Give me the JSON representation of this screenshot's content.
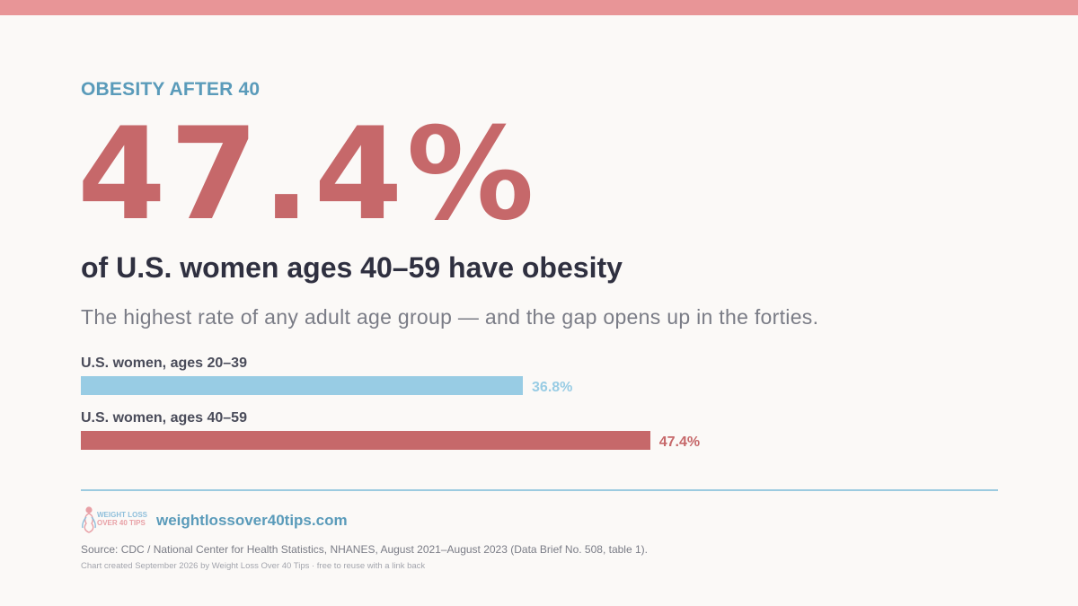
{
  "colors": {
    "accent_red": "#c6686a",
    "accent_blue": "#98cce4",
    "kicker_blue": "#5a9bba",
    "top_bar": "#e89597",
    "divider": "#9ccbe0"
  },
  "kicker": "OBESITY AFTER 40",
  "big_stat": "47.4%",
  "headline": "of U.S. women ages 40–59 have obesity",
  "subhead": "The highest rate of any adult age group — and the gap opens up in the forties.",
  "chart_data": {
    "type": "bar",
    "orientation": "horizontal",
    "unit": "%",
    "categories": [
      "U.S. women, ages 20–39",
      "U.S. women, ages 40–59"
    ],
    "values": [
      36.8,
      47.4
    ],
    "value_labels": [
      "36.8%",
      "47.4%"
    ],
    "bar_colors": [
      "#98cce4",
      "#c6686a"
    ],
    "title": "",
    "xlabel": "",
    "ylabel": "",
    "grid": false
  },
  "footer": {
    "logo_icon": "woman-silhouette-icon",
    "logo_line1": "WEIGHT LOSS",
    "logo_line2": "OVER 40 TIPS",
    "site": "weightlossover40tips.com",
    "source": "Source: CDC / National Center for Health Statistics, NHANES, August 2021–August 2023 (Data Brief No. 508, table 1).",
    "credit": "Chart created September 2026 by Weight Loss Over 40 Tips · free to reuse with a link back"
  }
}
